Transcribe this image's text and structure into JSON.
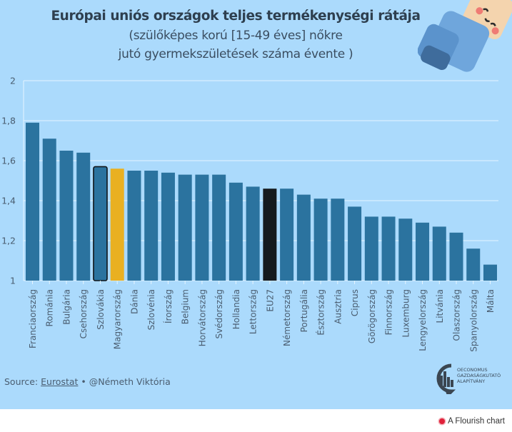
{
  "title": {
    "line1": "Európai uniós országok teljes termékenységi rátája",
    "line2": "(szülőképes korú [15-49 éves] nőkre",
    "line3": "jutó gyermekszületések száma évente )"
  },
  "source": {
    "prefix": "Source: ",
    "link": "Eurostat",
    "suffix": " • @Németh Viktória"
  },
  "logo": {
    "line1": "OECONOMUS",
    "line2": "GAZDASÁGKUTATÓ",
    "line3": "ALAPÍTVÁNY"
  },
  "footer": {
    "flourish_label": "A Flourish chart"
  },
  "colors": {
    "background": "#abdafc",
    "bar_default": "#2b739f",
    "bar_hungary": "#e9b021",
    "bar_eu27": "#151a1e",
    "highlight_outline": "#101418",
    "gridline": "#e6f4ff",
    "text": "#2e3f4f"
  },
  "chart_data": {
    "type": "bar",
    "title": "Európai uniós országok teljes termékenységi rátája",
    "subtitle": "(szülőképes korú [15-49 éves] nőkre jutó gyermekszületések száma évente )",
    "xlabel": "",
    "ylabel": "",
    "ylim": [
      1,
      2
    ],
    "yticks": [
      1,
      1.2,
      1.4,
      1.6,
      1.8,
      2
    ],
    "ytick_labels": [
      "1",
      "1,2",
      "1,4",
      "1,6",
      "1,8",
      "2"
    ],
    "grid": true,
    "legend": "none",
    "categories": [
      "Franciaország",
      "Románia",
      "Bulgária",
      "Csehország",
      "Szlovákia",
      "Magyarország",
      "Dánia",
      "Szlovénia",
      "Írország",
      "Belgium",
      "Horvátország",
      "Svédország",
      "Hollandia",
      "Lettország",
      "EU27",
      "Németország",
      "Portugália",
      "Észtország",
      "Ausztria",
      "Ciprus",
      "Görögország",
      "Finnország",
      "Luxemburg",
      "Lengyelország",
      "Litvánia",
      "Olaszország",
      "Spanyolország",
      "Málta"
    ],
    "values": [
      1.79,
      1.71,
      1.65,
      1.64,
      1.57,
      1.56,
      1.55,
      1.55,
      1.54,
      1.53,
      1.53,
      1.53,
      1.49,
      1.47,
      1.46,
      1.46,
      1.43,
      1.41,
      1.41,
      1.37,
      1.32,
      1.32,
      1.31,
      1.29,
      1.27,
      1.24,
      1.16,
      1.08
    ],
    "highlights": {
      "Magyarország": "hungary",
      "EU27": "eu27",
      "Szlovákia": "outlined"
    }
  }
}
